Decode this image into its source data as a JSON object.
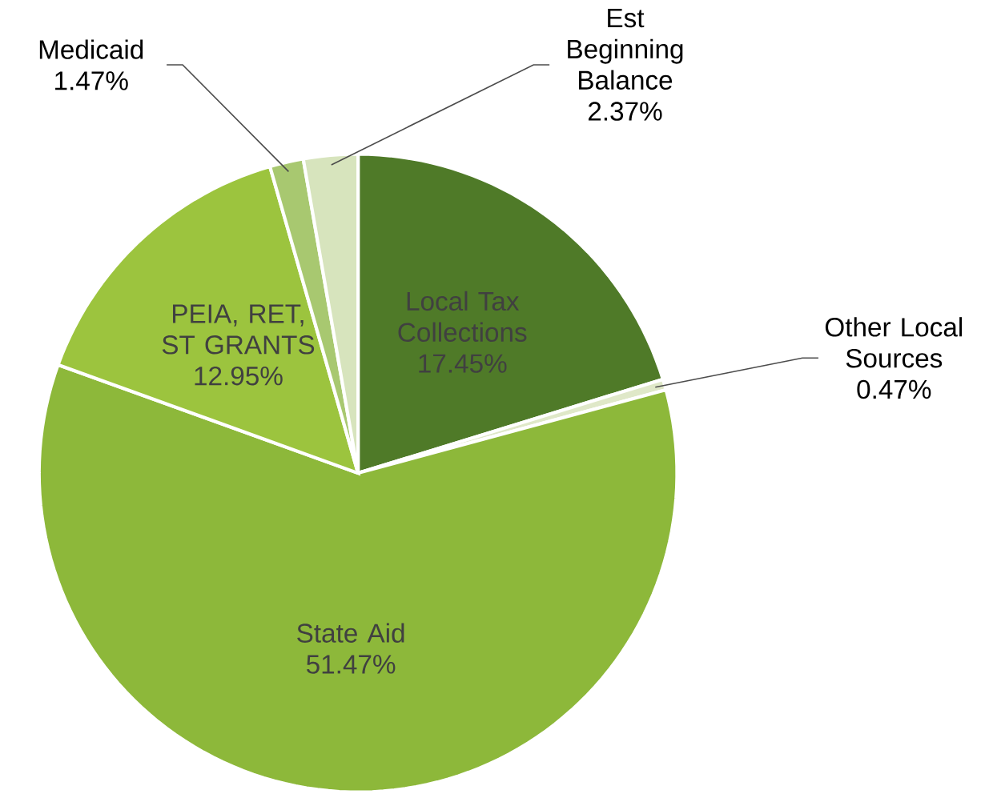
{
  "chart_data": {
    "type": "pie",
    "categories": [
      "Local Tax Collections",
      "Other Local Sources",
      "State Aid",
      "PEIA, RET, ST GRANTS",
      "Medicaid",
      "Est Beginning Balance"
    ],
    "values": [
      17.45,
      0.47,
      51.47,
      12.95,
      1.47,
      2.37
    ],
    "value_labels": [
      "17.45%",
      "0.47%",
      "51.47%",
      "12.95%",
      "1.47%",
      "2.37%"
    ],
    "colors": [
      "#4f7a28",
      "#dfe8c8",
      "#8db83a",
      "#9cc43e",
      "#a8c870",
      "#d7e4bd"
    ]
  }
}
